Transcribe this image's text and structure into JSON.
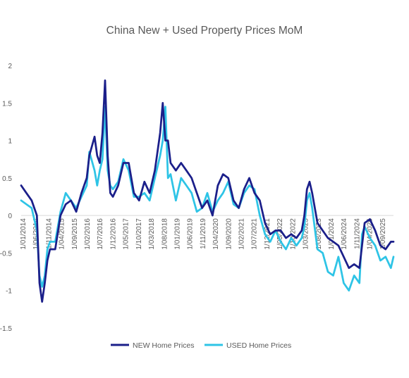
{
  "chart_data": {
    "type": "line",
    "title": "China New + Used Property Prices MoM",
    "xlabel": "",
    "ylabel": "",
    "ylim": [
      -1.5,
      2
    ],
    "y_ticks": [
      "2",
      "1.5",
      "1",
      "0.5",
      "0",
      "-0.5",
      "-1",
      "-1.5"
    ],
    "x_tick_labels": [
      "1/01/2014",
      "1/06/2014",
      "1/11/2014",
      "1/04/2015",
      "1/09/2015",
      "1/02/2016",
      "1/07/2016",
      "1/12/2016",
      "1/05/2017",
      "1/10/2017",
      "1/03/2018",
      "1/08/2018",
      "1/01/2019",
      "1/06/2019",
      "1/11/2019",
      "1/04/2020",
      "1/09/2020",
      "1/02/2021",
      "1/07/2021",
      "1/12/2021",
      "1/05/2022",
      "1/10/2022",
      "1/03/2023",
      "1/08/2023",
      "1/01/2024",
      "1/06/2024",
      "1/11/2024",
      "1/04/2025",
      "1/09/2025"
    ],
    "x_range": [
      "2014-01",
      "2025-11"
    ],
    "grid": false,
    "legend_position": "bottom",
    "series": [
      {
        "name": "NEW Home Prices",
        "color": "#1b1f8a",
        "x": [
          "2014-01",
          "2014-03",
          "2014-05",
          "2014-07",
          "2014-08",
          "2014-09",
          "2014-10",
          "2014-11",
          "2014-12",
          "2015-02",
          "2015-04",
          "2015-06",
          "2015-08",
          "2015-10",
          "2015-12",
          "2016-02",
          "2016-03",
          "2016-05",
          "2016-06",
          "2016-07",
          "2016-08",
          "2016-09",
          "2016-10",
          "2016-11",
          "2016-12",
          "2017-02",
          "2017-04",
          "2017-06",
          "2017-08",
          "2017-10",
          "2017-12",
          "2018-02",
          "2018-04",
          "2018-06",
          "2018-07",
          "2018-08",
          "2018-09",
          "2018-10",
          "2018-12",
          "2019-02",
          "2019-04",
          "2019-06",
          "2019-08",
          "2019-10",
          "2019-12",
          "2020-02",
          "2020-04",
          "2020-06",
          "2020-08",
          "2020-10",
          "2020-12",
          "2021-02",
          "2021-04",
          "2021-06",
          "2021-08",
          "2021-10",
          "2021-12",
          "2022-02",
          "2022-04",
          "2022-06",
          "2022-08",
          "2022-10",
          "2022-12",
          "2023-01",
          "2023-02",
          "2023-03",
          "2023-04",
          "2023-06",
          "2023-08",
          "2023-10",
          "2023-12",
          "2024-02",
          "2024-04",
          "2024-06",
          "2024-08",
          "2024-10",
          "2024-11",
          "2024-12",
          "2025-02",
          "2025-04",
          "2025-06",
          "2025-08",
          "2025-10",
          "2025-11"
        ],
        "values": [
          0.4,
          0.3,
          0.2,
          0.0,
          -0.9,
          -1.15,
          -0.9,
          -0.6,
          -0.45,
          -0.45,
          0.0,
          0.15,
          0.2,
          0.05,
          0.3,
          0.5,
          0.8,
          1.05,
          0.8,
          0.7,
          1.1,
          1.8,
          0.8,
          0.3,
          0.25,
          0.4,
          0.7,
          0.7,
          0.3,
          0.2,
          0.45,
          0.3,
          0.6,
          1.1,
          1.5,
          1.0,
          1.0,
          0.7,
          0.6,
          0.7,
          0.6,
          0.5,
          0.3,
          0.1,
          0.2,
          0.0,
          0.4,
          0.55,
          0.5,
          0.2,
          0.1,
          0.35,
          0.5,
          0.3,
          0.2,
          -0.1,
          -0.25,
          -0.2,
          -0.2,
          -0.3,
          -0.25,
          -0.3,
          -0.2,
          0.0,
          0.35,
          0.45,
          0.3,
          -0.1,
          -0.2,
          -0.3,
          -0.35,
          -0.4,
          -0.55,
          -0.7,
          -0.65,
          -0.7,
          -0.4,
          -0.1,
          -0.05,
          -0.2,
          -0.4,
          -0.45,
          -0.35,
          -0.35
        ]
      },
      {
        "name": "USED Home Prices",
        "color": "#2ec4e6",
        "x": [
          "2014-01",
          "2014-03",
          "2014-05",
          "2014-07",
          "2014-08",
          "2014-09",
          "2014-10",
          "2014-11",
          "2014-12",
          "2015-02",
          "2015-04",
          "2015-06",
          "2015-08",
          "2015-10",
          "2015-12",
          "2016-02",
          "2016-03",
          "2016-05",
          "2016-06",
          "2016-07",
          "2016-08",
          "2016-09",
          "2016-10",
          "2016-11",
          "2016-12",
          "2017-02",
          "2017-04",
          "2017-06",
          "2017-08",
          "2017-10",
          "2017-12",
          "2018-02",
          "2018-04",
          "2018-06",
          "2018-07",
          "2018-08",
          "2018-09",
          "2018-10",
          "2018-12",
          "2019-02",
          "2019-04",
          "2019-06",
          "2019-08",
          "2019-10",
          "2019-12",
          "2020-02",
          "2020-04",
          "2020-06",
          "2020-08",
          "2020-10",
          "2020-12",
          "2021-02",
          "2021-04",
          "2021-06",
          "2021-08",
          "2021-10",
          "2021-12",
          "2022-02",
          "2022-04",
          "2022-06",
          "2022-08",
          "2022-10",
          "2022-12",
          "2023-01",
          "2023-02",
          "2023-03",
          "2023-04",
          "2023-06",
          "2023-08",
          "2023-10",
          "2023-12",
          "2024-02",
          "2024-04",
          "2024-06",
          "2024-08",
          "2024-10",
          "2024-11",
          "2024-12",
          "2025-02",
          "2025-04",
          "2025-06",
          "2025-08",
          "2025-10",
          "2025-11"
        ],
        "values": [
          0.2,
          0.15,
          0.1,
          -0.2,
          -0.8,
          -0.95,
          -0.8,
          -0.45,
          -0.35,
          -0.35,
          0.05,
          0.3,
          0.2,
          0.1,
          0.25,
          0.4,
          0.85,
          0.6,
          0.4,
          0.6,
          0.75,
          1.45,
          0.6,
          0.4,
          0.35,
          0.45,
          0.75,
          0.6,
          0.25,
          0.25,
          0.3,
          0.2,
          0.5,
          0.8,
          1.0,
          1.45,
          0.5,
          0.55,
          0.2,
          0.5,
          0.4,
          0.3,
          0.05,
          0.1,
          0.3,
          0.05,
          0.2,
          0.3,
          0.45,
          0.15,
          0.1,
          0.3,
          0.4,
          0.35,
          0.0,
          -0.25,
          -0.35,
          -0.2,
          -0.35,
          -0.45,
          -0.3,
          -0.4,
          -0.3,
          -0.15,
          0.2,
          0.3,
          0.1,
          -0.45,
          -0.5,
          -0.75,
          -0.8,
          -0.55,
          -0.9,
          -1.0,
          -0.8,
          -0.9,
          -0.25,
          -0.15,
          -0.3,
          -0.4,
          -0.6,
          -0.55,
          -0.7,
          -0.55
        ]
      }
    ]
  }
}
